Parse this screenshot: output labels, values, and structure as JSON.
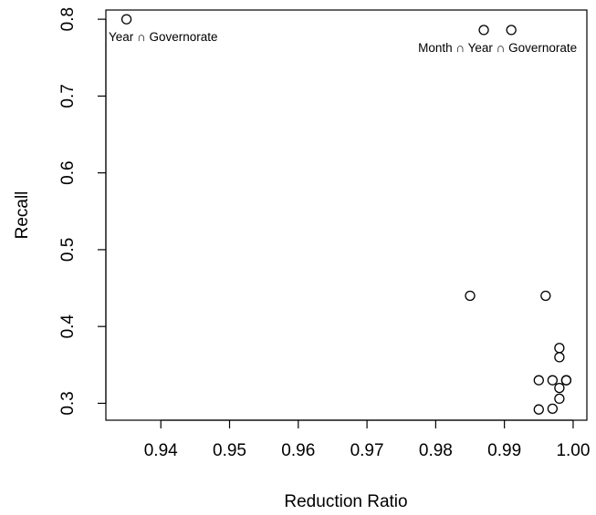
{
  "chart_data": {
    "type": "scatter",
    "title": "",
    "xlabel": "Reduction Ratio",
    "ylabel": "Recall",
    "xlim": [
      0.932,
      1.002
    ],
    "ylim": [
      0.278,
      0.812
    ],
    "x_ticks": [
      0.94,
      0.95,
      0.96,
      0.97,
      0.98,
      0.99,
      1.0
    ],
    "x_tick_labels": [
      "0.94",
      "0.95",
      "0.96",
      "0.97",
      "0.98",
      "0.99",
      "1.00"
    ],
    "y_ticks": [
      0.3,
      0.4,
      0.5,
      0.6,
      0.7,
      0.8
    ],
    "y_tick_labels": [
      "0.3",
      "0.4",
      "0.5",
      "0.6",
      "0.7",
      "0.8"
    ],
    "grid": false,
    "marker": "open-circle",
    "points": [
      {
        "x": 0.935,
        "y": 0.8
      },
      {
        "x": 0.987,
        "y": 0.786
      },
      {
        "x": 0.991,
        "y": 0.786
      },
      {
        "x": 0.985,
        "y": 0.44
      },
      {
        "x": 0.996,
        "y": 0.44
      },
      {
        "x": 0.998,
        "y": 0.372
      },
      {
        "x": 0.998,
        "y": 0.36
      },
      {
        "x": 0.995,
        "y": 0.33
      },
      {
        "x": 0.997,
        "y": 0.33
      },
      {
        "x": 0.999,
        "y": 0.33
      },
      {
        "x": 0.999,
        "y": 0.33
      },
      {
        "x": 0.998,
        "y": 0.32
      },
      {
        "x": 0.998,
        "y": 0.306
      },
      {
        "x": 0.995,
        "y": 0.292
      },
      {
        "x": 0.997,
        "y": 0.293
      }
    ],
    "annotations": [
      {
        "text": "Year ∩ Governorate",
        "x": 0.935,
        "y": 0.8
      },
      {
        "text": "Month ∩ Year ∩ Governorate",
        "x": 0.989,
        "y": 0.786
      }
    ]
  }
}
